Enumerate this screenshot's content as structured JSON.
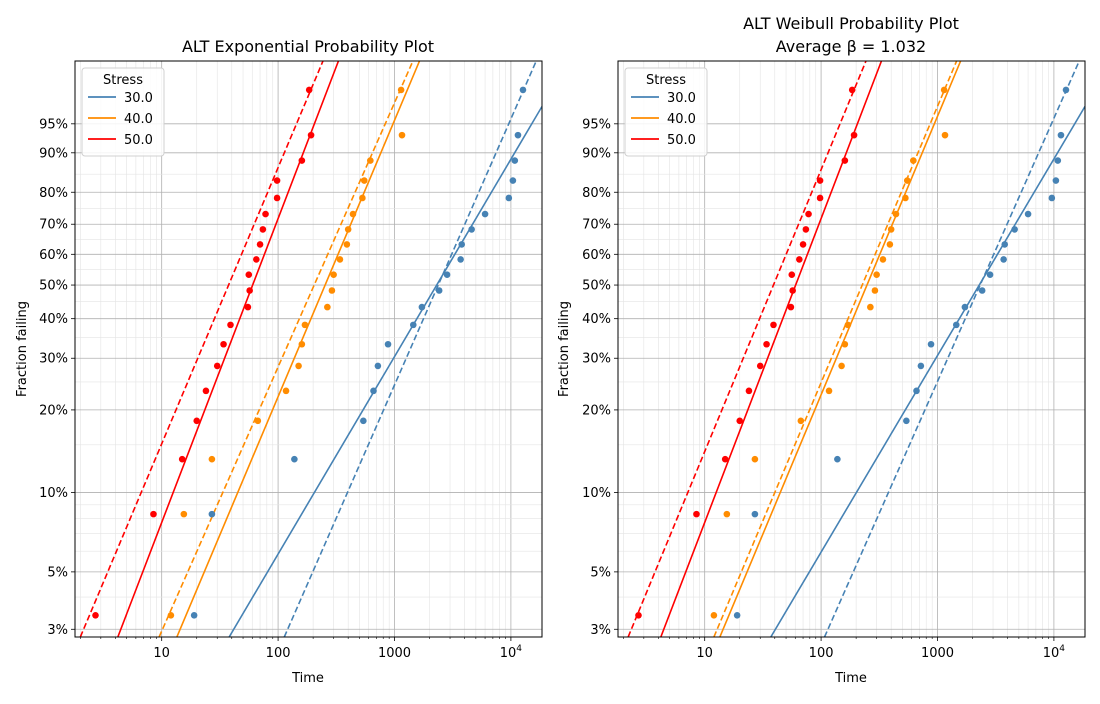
{
  "chart_data": [
    {
      "type": "scatter",
      "title": "ALT Exponential Probability Plot",
      "subtitle": "",
      "xlabel": "Time",
      "ylabel": "Fraction failing",
      "xscale": "log",
      "yscale": "weibull-probability",
      "xlim": [
        1.8,
        18500
      ],
      "ylim": [
        0.028,
        0.995
      ],
      "xticks": [
        {
          "value": 10,
          "label": "10"
        },
        {
          "value": 100,
          "label": "100"
        },
        {
          "value": 1000,
          "label": "1000"
        },
        {
          "value": 10000,
          "label": "10^4"
        }
      ],
      "yticks": [
        {
          "value": 0.03,
          "label": "3%"
        },
        {
          "value": 0.05,
          "label": "5%"
        },
        {
          "value": 0.1,
          "label": "10%"
        },
        {
          "value": 0.2,
          "label": "20%"
        },
        {
          "value": 0.3,
          "label": "30%"
        },
        {
          "value": 0.4,
          "label": "40%"
        },
        {
          "value": 0.5,
          "label": "50%"
        },
        {
          "value": 0.6,
          "label": "60%"
        },
        {
          "value": 0.7,
          "label": "70%"
        },
        {
          "value": 0.8,
          "label": "80%"
        },
        {
          "value": 0.9,
          "label": "90%"
        },
        {
          "value": 0.95,
          "label": "95%"
        }
      ],
      "grid": true,
      "legend": {
        "title": "Stress",
        "placement": "top-left"
      },
      "series": [
        {
          "name": "30.0",
          "color": "#4682b4",
          "points": [
            [
              19,
              0.034
            ],
            [
              27,
              0.083
            ],
            [
              138,
              0.133
            ],
            [
              540,
              0.183
            ],
            [
              660,
              0.233
            ],
            [
              720,
              0.283
            ],
            [
              880,
              0.333
            ],
            [
              1450,
              0.383
            ],
            [
              1720,
              0.433
            ],
            [
              2420,
              0.483
            ],
            [
              2830,
              0.533
            ],
            [
              3700,
              0.583
            ],
            [
              3780,
              0.633
            ],
            [
              4600,
              0.683
            ],
            [
              6000,
              0.733
            ],
            [
              9600,
              0.783
            ],
            [
              10400,
              0.833
            ],
            [
              10800,
              0.883
            ],
            [
              11500,
              0.933
            ],
            [
              12700,
              0.983
            ]
          ],
          "fit_solid": [
            [
              38,
              0.028
            ],
            [
              18500,
              0.97
            ]
          ],
          "fit_dashed": [
            [
              113,
              0.028
            ],
            [
              16500,
              0.995
            ]
          ]
        },
        {
          "name": "40.0",
          "color": "#ff8c00",
          "points": [
            [
              12,
              0.034
            ],
            [
              15.5,
              0.083
            ],
            [
              27,
              0.133
            ],
            [
              67,
              0.183
            ],
            [
              117,
              0.233
            ],
            [
              150,
              0.283
            ],
            [
              160,
              0.333
            ],
            [
              170,
              0.383
            ],
            [
              265,
              0.433
            ],
            [
              290,
              0.483
            ],
            [
              300,
              0.533
            ],
            [
              340,
              0.583
            ],
            [
              390,
              0.633
            ],
            [
              400,
              0.683
            ],
            [
              440,
              0.733
            ],
            [
              530,
              0.783
            ],
            [
              550,
              0.833
            ],
            [
              620,
              0.883
            ],
            [
              1160,
              0.933
            ],
            [
              1140,
              0.983
            ]
          ],
          "fit_solid": [
            [
              13.5,
              0.028
            ],
            [
              1640,
              0.995
            ]
          ],
          "fit_dashed": [
            [
              9.5,
              0.028
            ],
            [
              1440,
              0.995
            ]
          ]
        },
        {
          "name": "50.0",
          "color": "#ff0000",
          "points": [
            [
              2.7,
              0.034
            ],
            [
              8.5,
              0.083
            ],
            [
              15,
              0.133
            ],
            [
              20,
              0.183
            ],
            [
              24,
              0.233
            ],
            [
              30,
              0.283
            ],
            [
              34,
              0.333
            ],
            [
              39,
              0.383
            ],
            [
              55,
              0.433
            ],
            [
              57,
              0.483
            ],
            [
              56,
              0.533
            ],
            [
              65,
              0.583
            ],
            [
              70,
              0.633
            ],
            [
              74,
              0.683
            ],
            [
              78,
              0.733
            ],
            [
              98,
              0.783
            ],
            [
              98,
              0.833
            ],
            [
              160,
              0.883
            ],
            [
              192,
              0.933
            ],
            [
              185,
              0.983
            ]
          ],
          "fit_solid": [
            [
              4.2,
              0.028
            ],
            [
              330,
              0.995
            ]
          ],
          "fit_dashed": [
            [
              2.0,
              0.028
            ],
            [
              243,
              0.995
            ]
          ]
        }
      ]
    },
    {
      "type": "scatter",
      "title": "ALT Weibull Probability Plot",
      "subtitle": "Average β = 1.032",
      "xlabel": "Time",
      "ylabel": "Fraction failing",
      "xscale": "log",
      "yscale": "weibull-probability",
      "xlim": [
        1.8,
        18500
      ],
      "ylim": [
        0.028,
        0.995
      ],
      "xticks": [
        {
          "value": 10,
          "label": "10"
        },
        {
          "value": 100,
          "label": "100"
        },
        {
          "value": 1000,
          "label": "1000"
        },
        {
          "value": 10000,
          "label": "10^4"
        }
      ],
      "yticks": [
        {
          "value": 0.03,
          "label": "3%"
        },
        {
          "value": 0.05,
          "label": "5%"
        },
        {
          "value": 0.1,
          "label": "10%"
        },
        {
          "value": 0.2,
          "label": "20%"
        },
        {
          "value": 0.3,
          "label": "30%"
        },
        {
          "value": 0.4,
          "label": "40%"
        },
        {
          "value": 0.5,
          "label": "50%"
        },
        {
          "value": 0.6,
          "label": "60%"
        },
        {
          "value": 0.7,
          "label": "70%"
        },
        {
          "value": 0.8,
          "label": "80%"
        },
        {
          "value": 0.9,
          "label": "90%"
        },
        {
          "value": 0.95,
          "label": "95%"
        }
      ],
      "grid": true,
      "legend": {
        "title": "Stress",
        "placement": "top-left"
      },
      "series": [
        {
          "name": "30.0",
          "color": "#4682b4",
          "points": [
            [
              19,
              0.034
            ],
            [
              27,
              0.083
            ],
            [
              138,
              0.133
            ],
            [
              540,
              0.183
            ],
            [
              660,
              0.233
            ],
            [
              720,
              0.283
            ],
            [
              880,
              0.333
            ],
            [
              1450,
              0.383
            ],
            [
              1720,
              0.433
            ],
            [
              2420,
              0.483
            ],
            [
              2830,
              0.533
            ],
            [
              3700,
              0.583
            ],
            [
              3780,
              0.633
            ],
            [
              4600,
              0.683
            ],
            [
              6000,
              0.733
            ],
            [
              9600,
              0.783
            ],
            [
              10400,
              0.833
            ],
            [
              10800,
              0.883
            ],
            [
              11500,
              0.933
            ],
            [
              12700,
              0.983
            ]
          ],
          "fit_solid": [
            [
              37,
              0.028
            ],
            [
              18500,
              0.97
            ]
          ],
          "fit_dashed": [
            [
              107,
              0.028
            ],
            [
              16500,
              0.995
            ]
          ]
        },
        {
          "name": "40.0",
          "color": "#ff8c00",
          "points": [
            [
              12,
              0.034
            ],
            [
              15.5,
              0.083
            ],
            [
              27,
              0.133
            ],
            [
              67,
              0.183
            ],
            [
              117,
              0.233
            ],
            [
              150,
              0.283
            ],
            [
              160,
              0.333
            ],
            [
              170,
              0.383
            ],
            [
              265,
              0.433
            ],
            [
              290,
              0.483
            ],
            [
              300,
              0.533
            ],
            [
              340,
              0.583
            ],
            [
              390,
              0.633
            ],
            [
              400,
              0.683
            ],
            [
              440,
              0.733
            ],
            [
              530,
              0.783
            ],
            [
              550,
              0.833
            ],
            [
              620,
              0.883
            ],
            [
              1160,
              0.933
            ],
            [
              1140,
              0.983
            ]
          ],
          "fit_solid": [
            [
              13.5,
              0.028
            ],
            [
              1580,
              0.995
            ]
          ],
          "fit_dashed": [
            [
              12,
              0.028
            ],
            [
              1460,
              0.995
            ]
          ]
        },
        {
          "name": "50.0",
          "color": "#ff0000",
          "points": [
            [
              2.7,
              0.034
            ],
            [
              8.5,
              0.083
            ],
            [
              15,
              0.133
            ],
            [
              20,
              0.183
            ],
            [
              24,
              0.233
            ],
            [
              30,
              0.283
            ],
            [
              34,
              0.333
            ],
            [
              39,
              0.383
            ],
            [
              55,
              0.433
            ],
            [
              57,
              0.483
            ],
            [
              56,
              0.533
            ],
            [
              65,
              0.583
            ],
            [
              70,
              0.633
            ],
            [
              74,
              0.683
            ],
            [
              78,
              0.733
            ],
            [
              98,
              0.783
            ],
            [
              98,
              0.833
            ],
            [
              160,
              0.883
            ],
            [
              192,
              0.933
            ],
            [
              185,
              0.983
            ]
          ],
          "fit_solid": [
            [
              4.2,
              0.028
            ],
            [
              330,
              0.995
            ]
          ],
          "fit_dashed": [
            [
              2.2,
              0.028
            ],
            [
              243,
              0.995
            ]
          ]
        }
      ]
    }
  ]
}
